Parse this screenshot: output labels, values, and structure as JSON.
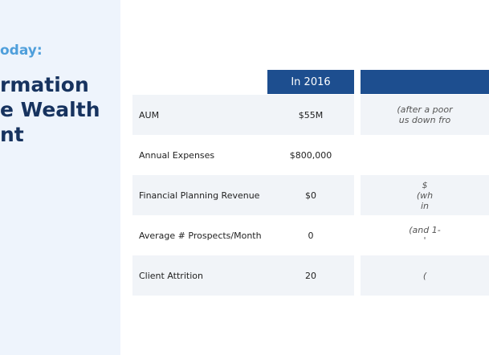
{
  "header": {
    "kicker": "oday:",
    "title_lines": [
      "rmation",
      "e Wealth",
      "nt"
    ]
  },
  "table": {
    "headers": [
      "In 2016"
    ],
    "rows": [
      {
        "label": "AUM",
        "value": "$55M",
        "note": [
          "(after a poor",
          "us down fro"
        ]
      },
      {
        "label": "Annual Expenses",
        "value": "$800,000"
      },
      {
        "label": "Financial Planning Revenue",
        "value": "$0",
        "note": [
          "$",
          "(wh",
          "in"
        ]
      },
      {
        "label": "Average # Prospects/Month",
        "value": "0",
        "note": [
          "(and 1-",
          "'"
        ]
      },
      {
        "label": "Client Attrition",
        "value": "20",
        "note": [
          "("
        ]
      }
    ]
  }
}
